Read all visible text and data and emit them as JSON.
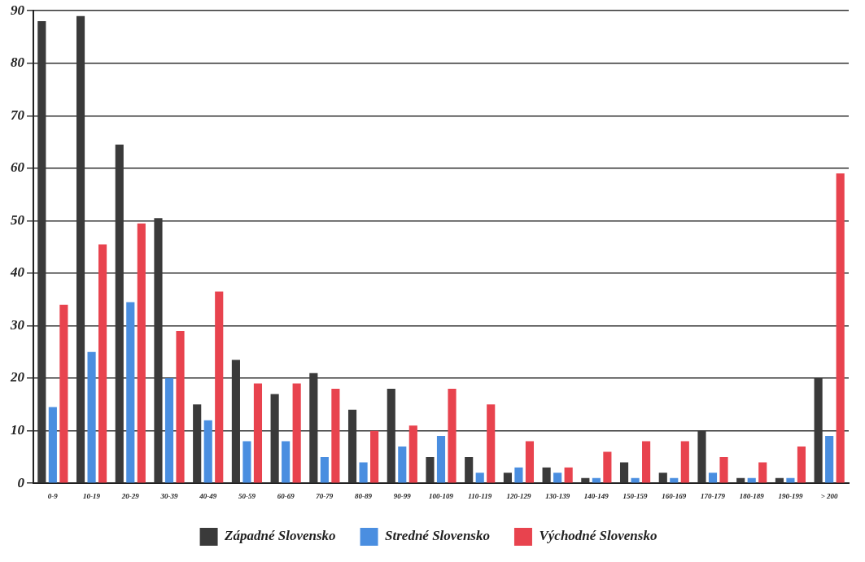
{
  "chart_data": {
    "type": "bar",
    "categories": [
      "0-9",
      "10-19",
      "20-29",
      "30-39",
      "40-49",
      "50-59",
      "60-69",
      "70-79",
      "80-89",
      "90-99",
      "100-109",
      "110-119",
      "120-129",
      "130-139",
      "140-149",
      "150-159",
      "160-169",
      "170-179",
      "180-189",
      "190-199",
      "> 200"
    ],
    "series": [
      {
        "name": "Západné Slovensko",
        "color": "#3a3a3a",
        "values": [
          88,
          89,
          64.5,
          50.5,
          15,
          23.5,
          17,
          21,
          14,
          18,
          5,
          5,
          2,
          3,
          1,
          4,
          2,
          10,
          1,
          1,
          20
        ]
      },
      {
        "name": "Stredné Slovensko",
        "color": "#4a8ee0",
        "values": [
          14.5,
          25,
          34.5,
          20,
          12,
          8,
          8,
          5,
          4,
          7,
          9,
          2,
          3,
          2,
          1,
          1,
          1,
          2,
          1,
          1,
          9
        ]
      },
      {
        "name": "Východné Slovensko",
        "color": "#e8434e",
        "values": [
          34,
          45.5,
          49.5,
          29,
          36.5,
          19,
          19,
          18,
          10,
          11,
          18,
          15,
          8,
          3,
          6,
          8,
          8,
          5,
          4,
          7,
          59
        ]
      }
    ],
    "ylim": [
      0,
      90
    ],
    "yticks": [
      0,
      10,
      20,
      30,
      40,
      50,
      60,
      70,
      80,
      90
    ],
    "grid": "y",
    "legend": "bottom"
  }
}
